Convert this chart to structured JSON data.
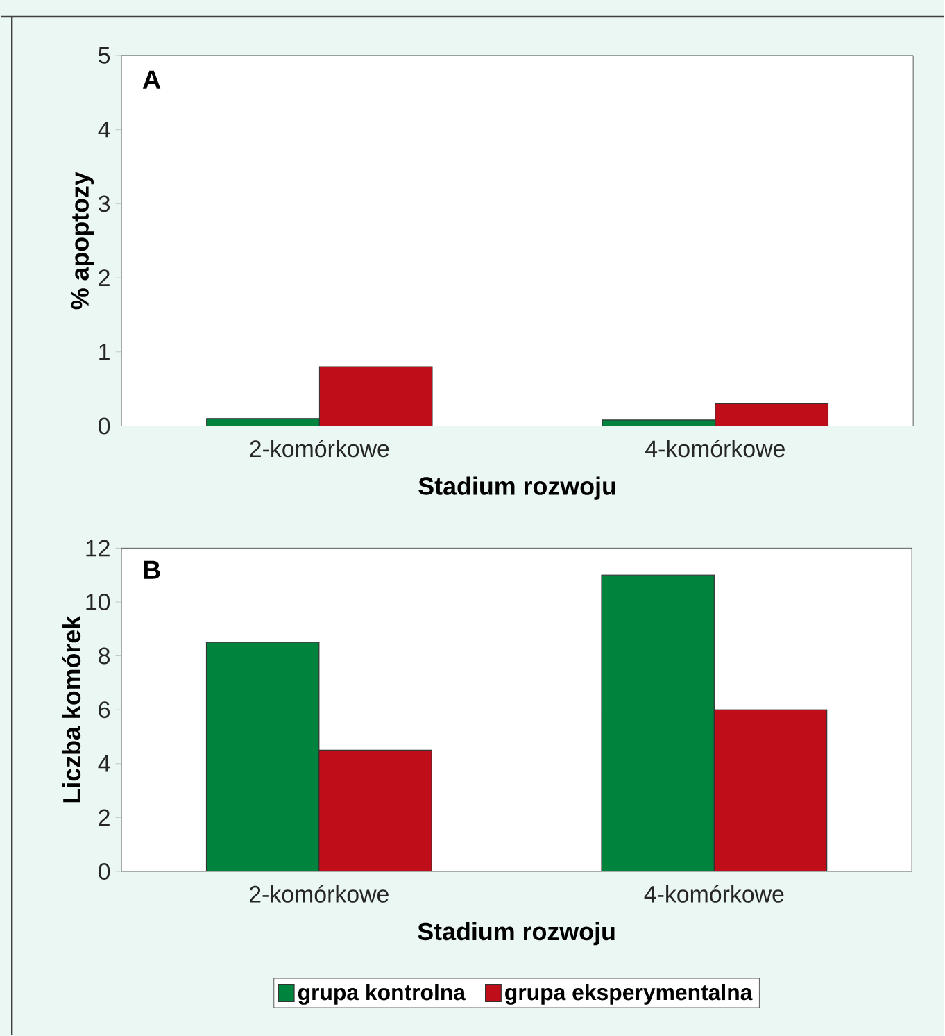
{
  "chart_data": [
    {
      "type": "bar",
      "title": "A",
      "xlabel": "Stadium rozwoju",
      "ylabel": "% apoptozy",
      "categories": [
        "2-komórkowe",
        "4-komórkowe"
      ],
      "ylim": [
        0,
        5
      ],
      "yticks": [
        0,
        1,
        2,
        3,
        4,
        5
      ],
      "series": [
        {
          "color": "#00843d",
          "values": [
            0.1,
            0.08
          ]
        },
        {
          "color": "#c00d1a",
          "values": [
            0.8,
            0.3
          ]
        }
      ]
    },
    {
      "type": "bar",
      "title": "B",
      "xlabel": "Stadium rozwoju",
      "ylabel": "Liczba komórek",
      "categories": [
        "2-komórkowe",
        "4-komórkowe"
      ],
      "ylim": [
        0,
        12
      ],
      "yticks": [
        0,
        2,
        4,
        6,
        8,
        10,
        12
      ],
      "legend": "bottom",
      "series": [
        {
          "name": "grupa kontrolna",
          "color": "#00843d",
          "values": [
            8.5,
            11
          ]
        },
        {
          "name": "grupa eksperymentalna",
          "color": "#c00d1a",
          "values": [
            4.5,
            6
          ]
        }
      ]
    }
  ]
}
